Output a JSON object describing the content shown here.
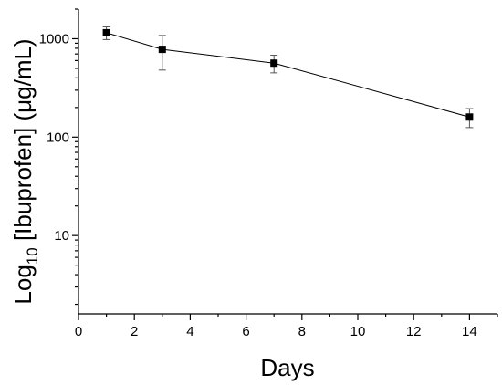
{
  "chart_data": {
    "type": "line",
    "title": "",
    "xlabel": "Days",
    "ylabel_main": "Log",
    "ylabel_sub": "10",
    "ylabel_rest": " [Ibuprofen] (μg/mL)",
    "x_scale": "linear",
    "y_scale": "log",
    "xlim": [
      0,
      15
    ],
    "ylim": [
      1.6,
      2000
    ],
    "x_ticks": [
      0,
      2,
      4,
      6,
      8,
      10,
      12,
      14
    ],
    "x_tick_labels": [
      "0",
      "2",
      "4",
      "6",
      "8",
      "10",
      "12",
      "14"
    ],
    "y_ticks": [
      10,
      100,
      1000
    ],
    "y_tick_labels": [
      "10",
      "100",
      "1000"
    ],
    "grid": false,
    "series": [
      {
        "marker": "square",
        "color": "#000000",
        "x": [
          1,
          3,
          7,
          14
        ],
        "y": [
          1150,
          780,
          565,
          160
        ],
        "y_err_low": [
          980,
          480,
          450,
          125
        ],
        "y_err_high": [
          1320,
          1080,
          680,
          195
        ]
      }
    ]
  }
}
